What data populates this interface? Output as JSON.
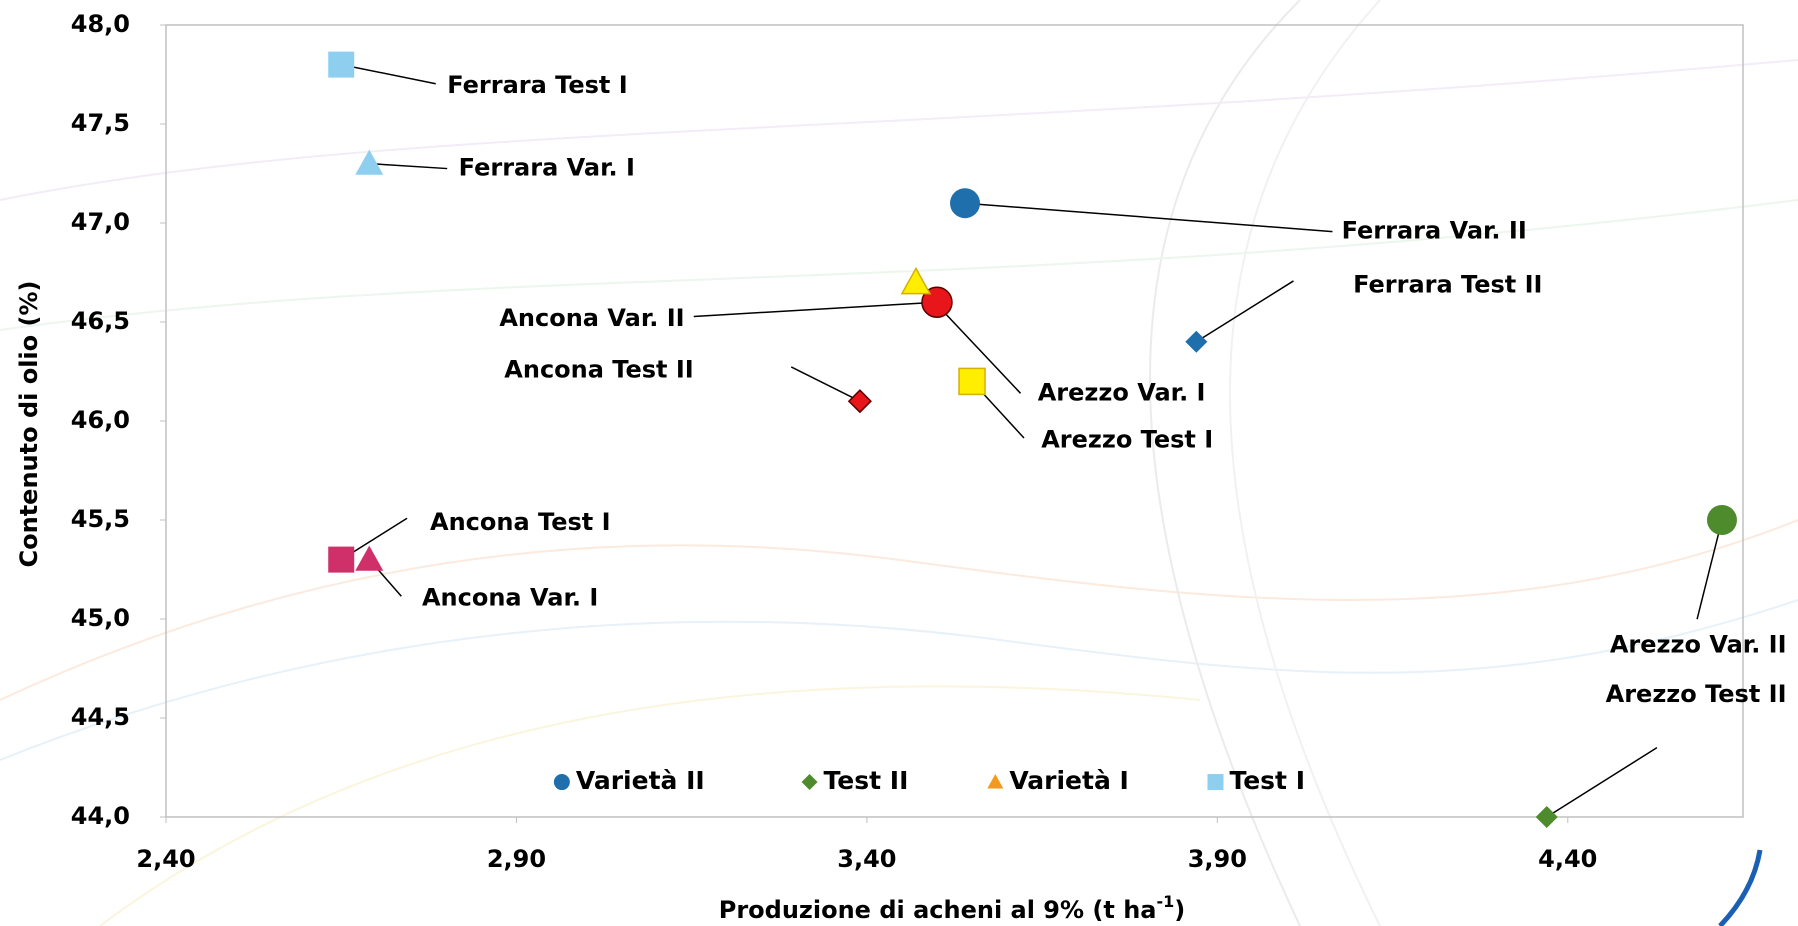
{
  "chart_data": {
    "type": "scatter",
    "x_label": {
      "text": "Produzione di acheni al 9% (t ha",
      "superscript": "-1",
      "suffix": ")"
    },
    "y_label": "Contenuto di olio (%)",
    "xlim": [
      2.4,
      4.65
    ],
    "ylim": [
      44.0,
      48.0
    ],
    "xticks": [
      {
        "value": 2.4,
        "label": "2,40"
      },
      {
        "value": 2.9,
        "label": "2,90"
      },
      {
        "value": 3.4,
        "label": "3,40"
      },
      {
        "value": 3.9,
        "label": "3,90"
      },
      {
        "value": 4.4,
        "label": "4,40"
      }
    ],
    "yticks": [
      {
        "value": 44.0,
        "label": "44,0"
      },
      {
        "value": 44.5,
        "label": "44,5"
      },
      {
        "value": 45.0,
        "label": "45,0"
      },
      {
        "value": 45.5,
        "label": "45,5"
      },
      {
        "value": 46.0,
        "label": "46,0"
      },
      {
        "value": 46.5,
        "label": "46,5"
      },
      {
        "value": 47.0,
        "label": "47,0"
      },
      {
        "value": 47.5,
        "label": "47,5"
      },
      {
        "value": 48.0,
        "label": "48,0"
      }
    ],
    "legend": "bottom",
    "series": [
      {
        "name": "Varietà II",
        "marker": "circle",
        "color": "#1f6fad",
        "x": [
          3.54,
          3.5,
          4.62
        ],
        "values": [
          47.1,
          46.6,
          45.5
        ],
        "point_labels": [
          "Ferrara Var. II",
          "Ancona Var. II",
          "Arezzo Var. II"
        ],
        "point_colors": [
          "#1f6fad",
          "#e8161b",
          "#4e8b2c"
        ]
      },
      {
        "name": "Test II",
        "marker": "diamond",
        "color": "#4e8b2c",
        "x": [
          3.87,
          3.39,
          4.37
        ],
        "values": [
          46.4,
          46.1,
          44.0
        ],
        "point_labels": [
          "Ferrara Test II",
          "Ancona Test II",
          "Arezzo Test II"
        ],
        "point_colors": [
          "#1f6fad",
          "#e8161b",
          "#4e8b2c"
        ]
      },
      {
        "name": "Varietà I",
        "marker": "triangle",
        "color": "#f39a1e",
        "x": [
          2.69,
          2.69,
          3.47
        ],
        "values": [
          47.3,
          45.3,
          46.7
        ],
        "point_labels": [
          "Ferrara Var. I",
          "Ancona Var. I",
          "Arezzo Var. I"
        ],
        "point_colors": [
          "#8ecff0",
          "#d0306a",
          "#ffee00"
        ]
      },
      {
        "name": "Test I",
        "marker": "square",
        "color": "#8ecff0",
        "x": [
          2.65,
          2.65,
          3.55
        ],
        "values": [
          47.8,
          45.3,
          46.2
        ],
        "point_labels": [
          "Ferrara Test I",
          "Ancona Test I",
          "Arezzo Test I"
        ],
        "point_colors": [
          "#8ecff0",
          "#d0306a",
          "#ffee00"
        ]
      }
    ]
  }
}
